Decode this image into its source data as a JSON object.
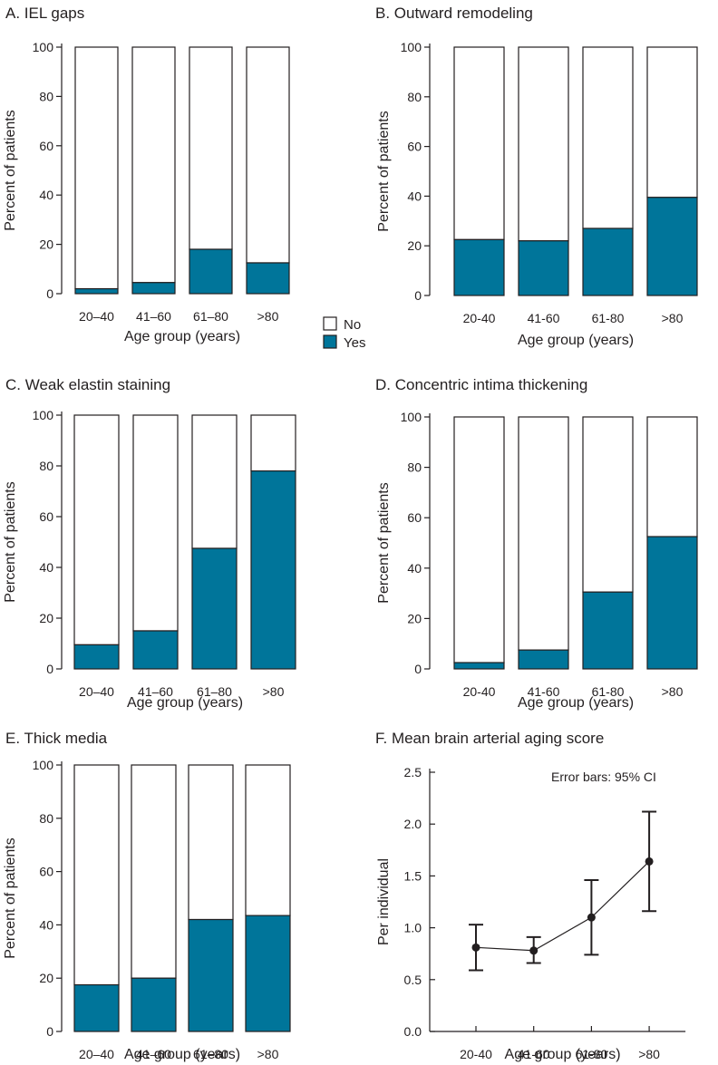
{
  "colors": {
    "yes": "#00759a",
    "no": "#ffffff",
    "stroke": "#231f20"
  },
  "legend": {
    "items": [
      {
        "label": "No",
        "color": "#ffffff"
      },
      {
        "label": "Yes",
        "color": "#00759a"
      }
    ]
  },
  "chart_data": [
    {
      "id": "A",
      "type": "bar",
      "stacked": true,
      "title": "A. IEL gaps",
      "xlabel": "Age group (years)",
      "ylabel": "Percent of patients",
      "categories": [
        "20–40",
        "41–60",
        "61–80",
        ">80"
      ],
      "series": [
        {
          "name": "Yes",
          "values": [
            2,
            4.5,
            18,
            12.5
          ]
        },
        {
          "name": "No",
          "values": [
            98,
            95.5,
            82,
            87.5
          ]
        }
      ],
      "ylim": [
        0,
        100
      ],
      "yticks": [
        "0",
        "20",
        "40",
        "60",
        "80",
        "100"
      ]
    },
    {
      "id": "B",
      "type": "bar",
      "stacked": true,
      "title": "B. Outward remodeling",
      "xlabel": "Age group (years)",
      "ylabel": "Percent of patients",
      "categories": [
        "20-40",
        "41-60",
        "61-80",
        ">80"
      ],
      "series": [
        {
          "name": "Yes",
          "values": [
            22.5,
            22,
            27,
            39.5
          ]
        },
        {
          "name": "No",
          "values": [
            77.5,
            78,
            73,
            60.5
          ]
        }
      ],
      "ylim": [
        0,
        100
      ],
      "yticks": [
        "0",
        "20",
        "40",
        "60",
        "80",
        "100"
      ]
    },
    {
      "id": "C",
      "type": "bar",
      "stacked": true,
      "title": "C. Weak elastin staining",
      "xlabel": "Age group (years)",
      "ylabel": "Percent of patients",
      "categories": [
        "20–40",
        "41–60",
        "61–80",
        ">80"
      ],
      "series": [
        {
          "name": "Yes",
          "values": [
            9.5,
            15,
            47.5,
            78
          ]
        },
        {
          "name": "No",
          "values": [
            90.5,
            85,
            52.5,
            22
          ]
        }
      ],
      "ylim": [
        0,
        100
      ],
      "yticks": [
        "0",
        "20",
        "40",
        "60",
        "80",
        "100"
      ]
    },
    {
      "id": "D",
      "type": "bar",
      "stacked": true,
      "title": "D. Concentric intima thickening",
      "xlabel": "Age group (years)",
      "ylabel": "Percent of patients",
      "categories": [
        "20-40",
        "41-60",
        "61-80",
        ">80"
      ],
      "series": [
        {
          "name": "Yes",
          "values": [
            2.5,
            7.5,
            30.5,
            52.5
          ]
        },
        {
          "name": "No",
          "values": [
            97.5,
            92.5,
            69.5,
            47.5
          ]
        }
      ],
      "ylim": [
        0,
        100
      ],
      "yticks": [
        "0",
        "20",
        "40",
        "60",
        "80",
        "100"
      ]
    },
    {
      "id": "E",
      "type": "bar",
      "stacked": true,
      "title": "E. Thick media",
      "xlabel": "Age group (years)",
      "ylabel": "Percent of patients",
      "categories": [
        "20–40",
        "41–60",
        "61–80",
        ">80"
      ],
      "series": [
        {
          "name": "Yes",
          "values": [
            17.5,
            20,
            42,
            43.5
          ]
        },
        {
          "name": "No",
          "values": [
            82.5,
            80,
            58,
            56.5
          ]
        }
      ],
      "ylim": [
        0,
        100
      ],
      "yticks": [
        "0",
        "20",
        "40",
        "60",
        "80",
        "100"
      ]
    },
    {
      "id": "F",
      "type": "line",
      "title": "F. Mean brain arterial aging score",
      "xlabel": "Age group (years)",
      "ylabel": "Per individual",
      "categories": [
        "20-40",
        "41-60",
        "61-80",
        ">80"
      ],
      "values": [
        0.81,
        0.78,
        1.1,
        1.64
      ],
      "ci_low": [
        0.59,
        0.66,
        0.74,
        1.16
      ],
      "ci_high": [
        1.03,
        0.91,
        1.46,
        2.12
      ],
      "ylim": [
        0,
        2.5
      ],
      "yticks": [
        "0.0",
        "0.5",
        "1.0",
        "1.5",
        "2.0",
        "2.5"
      ],
      "annotation": "Error bars: 95% CI"
    }
  ]
}
